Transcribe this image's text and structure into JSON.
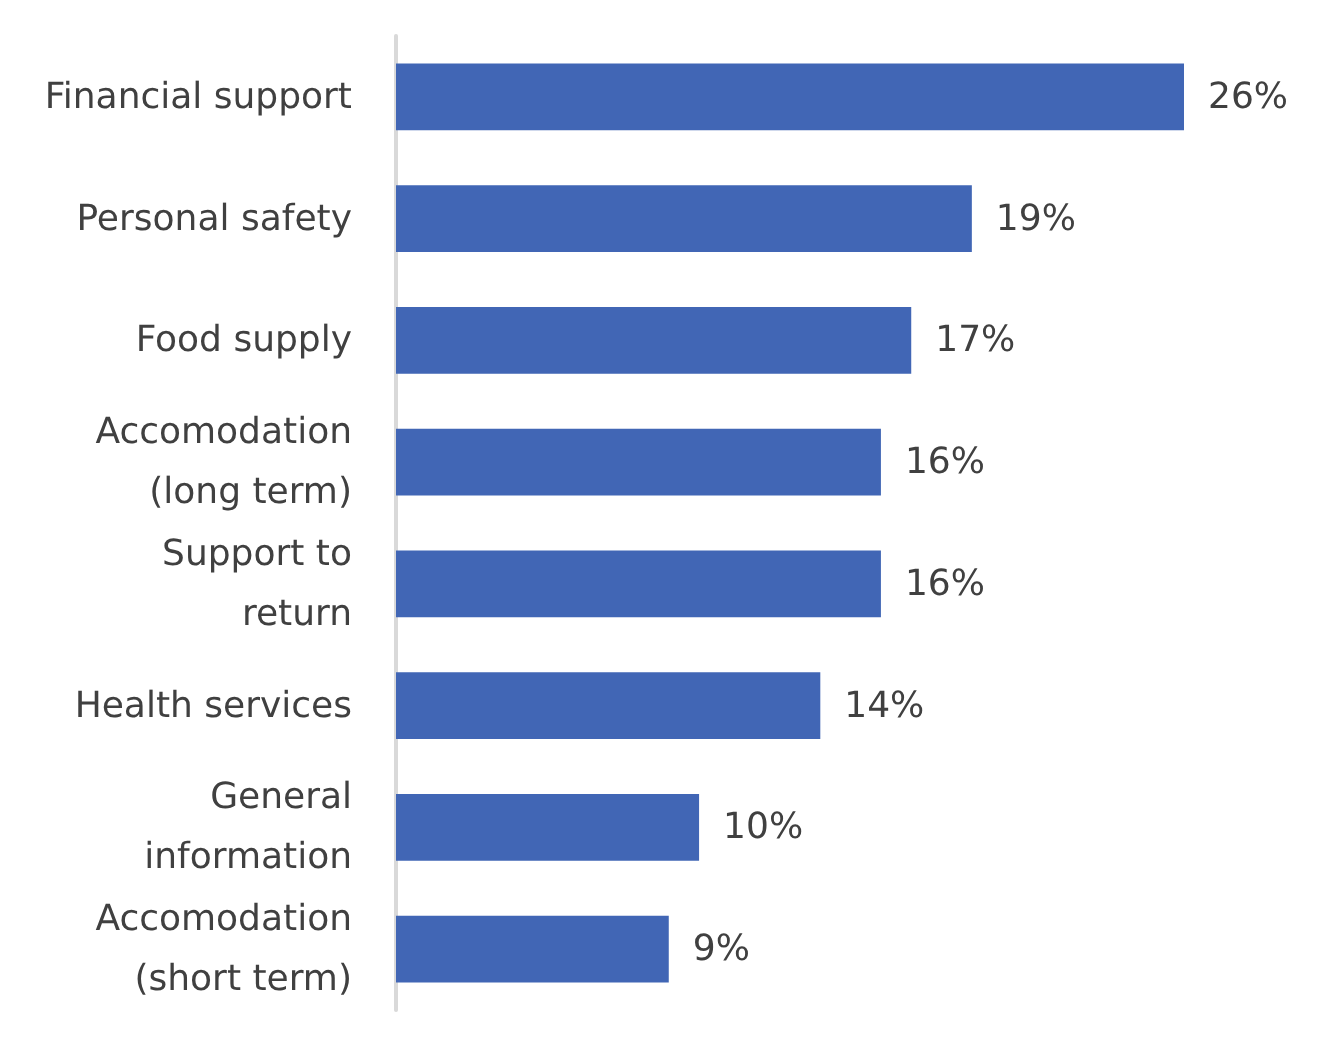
{
  "chart_data": {
    "type": "bar",
    "orientation": "horizontal",
    "categories": [
      "Financial support",
      "Personal safety",
      "Food supply",
      "Accomodation\n(long term)",
      "Support to\nreturn",
      "Health services",
      "General\ninformation",
      "Accomodation\n(short term)"
    ],
    "values": [
      26,
      19,
      17,
      16,
      16,
      14,
      10,
      9
    ],
    "value_labels": [
      "26%",
      "19%",
      "17%",
      "16%",
      "16%",
      "14%",
      "10%",
      "9%"
    ],
    "color": "#4166b5",
    "tick_labels": "y"
  }
}
